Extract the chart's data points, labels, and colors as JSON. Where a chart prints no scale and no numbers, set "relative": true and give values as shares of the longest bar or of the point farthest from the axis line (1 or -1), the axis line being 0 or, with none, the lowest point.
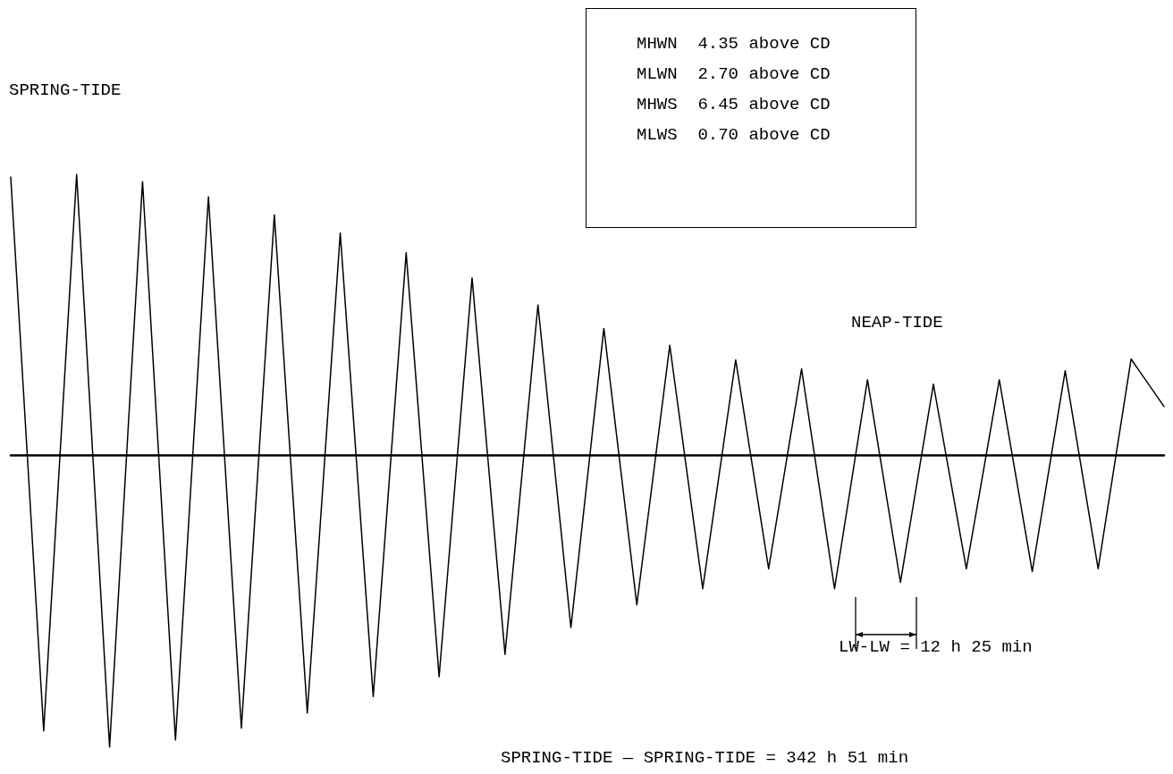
{
  "chart_data": {
    "type": "line",
    "relative": true,
    "color": "#000000",
    "marker": "none",
    "line_style": "solid",
    "grid": false,
    "categories": [
      null,
      null,
      null,
      null,
      null,
      null,
      null,
      null,
      null,
      null,
      null,
      null,
      null,
      null,
      null,
      null,
      null,
      null,
      null,
      null,
      null,
      null,
      null,
      null,
      null,
      null,
      null,
      null,
      null,
      null,
      null,
      null,
      null,
      null,
      null,
      null
    ],
    "values": [
      0.954,
      -0.944,
      0.963,
      -1,
      0.938,
      -0.975,
      0.886,
      -0.935,
      0.824,
      -0.883,
      0.762,
      -0.827,
      0.694,
      -0.759,
      0.608,
      -0.682,
      0.515,
      -0.59,
      0.435,
      -0.512,
      0.377,
      -0.457,
      0.327,
      -0.389,
      0.296,
      -0.457,
      0.259,
      -0.435,
      0.244,
      -0.389,
      0.259,
      -0.398,
      0.29,
      -0.389,
      0.33,
      0.167
    ],
    "annotations": [
      "SPRING-TIDE",
      "NEAP-TIDE",
      "MHWN  4.35 above CD",
      "MLWN  2.70 above CD",
      "MHWS  6.45 above CD",
      "MLWS  0.70 above CD",
      "LW-LW = 12 h 25 min",
      "SPRING-TIDE — SPRING-TIDE = 342 h 51 min"
    ]
  }
}
